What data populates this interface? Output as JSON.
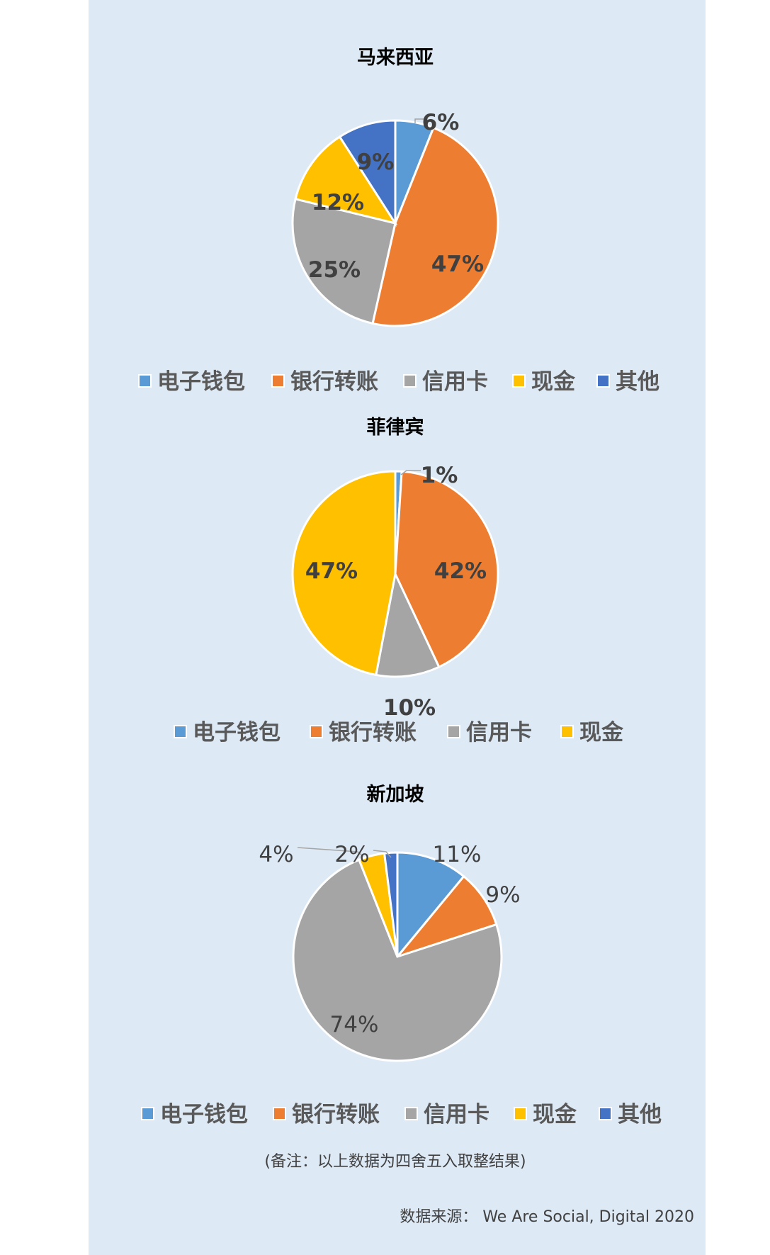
{
  "colors": {
    "电子钱包": "#5b9bd5",
    "银行转账": "#ed7d31",
    "信用卡": "#a5a5a5",
    "现金": "#ffc000",
    "其他": "#4472c4",
    "background": "#dde9f5"
  },
  "chart_data": [
    {
      "type": "pie",
      "title": "马来西亚",
      "categories": [
        "电子钱包",
        "银行转账",
        "信用卡",
        "现金",
        "其他"
      ],
      "values": [
        6,
        47,
        25,
        12,
        9
      ],
      "labels": [
        "6%",
        "47%",
        "25%",
        "12%",
        "9%"
      ],
      "legend": "bottom"
    },
    {
      "type": "pie",
      "title": "菲律宾",
      "categories": [
        "电子钱包",
        "银行转账",
        "信用卡",
        "现金"
      ],
      "values": [
        1,
        42,
        10,
        47
      ],
      "labels": [
        "1%",
        "42%",
        "10%",
        "47%"
      ],
      "legend": "bottom"
    },
    {
      "type": "pie",
      "title": "新加坡",
      "categories": [
        "电子钱包",
        "银行转账",
        "信用卡",
        "现金",
        "其他"
      ],
      "values": [
        11,
        9,
        74,
        4,
        2
      ],
      "labels": [
        "11%",
        "9%",
        "74%",
        "4%",
        "2%"
      ],
      "legend": "bottom"
    }
  ],
  "note": "(备注：以上数据为四舍五入取整结果)",
  "source": "数据来源：  We Are Social, Digital 2020"
}
